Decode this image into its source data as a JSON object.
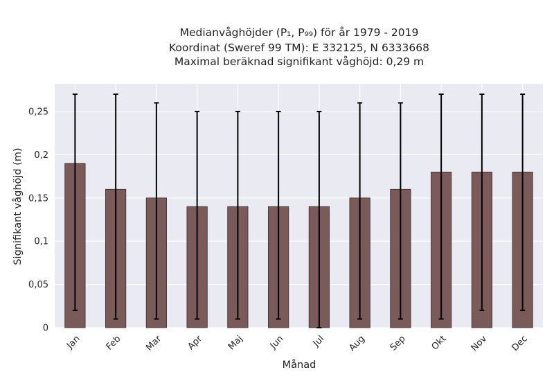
{
  "chart_data": {
    "type": "bar",
    "title_lines": [
      "Medianvåghöjder (P₁, P₉₉) för år 1979 - 2019",
      "Koordinat (Sweref 99 TM): E 332125, N 6333668",
      "Maximal beräknad signifikant våghöjd: 0,29 m"
    ],
    "xlabel": "Månad",
    "ylabel": "Signifikant våghöjd (m)",
    "categories": [
      "Jan",
      "Feb",
      "Mar",
      "Apr",
      "Maj",
      "Jun",
      "Jul",
      "Aug",
      "Sep",
      "Okt",
      "Nov",
      "Dec"
    ],
    "values": [
      0.19,
      0.16,
      0.15,
      0.14,
      0.14,
      0.14,
      0.14,
      0.15,
      0.16,
      0.18,
      0.18,
      0.18
    ],
    "p1": [
      0.02,
      0.01,
      0.01,
      0.01,
      0.01,
      0.01,
      0.0,
      0.01,
      0.01,
      0.01,
      0.02,
      0.02
    ],
    "p99": [
      0.27,
      0.27,
      0.26,
      0.25,
      0.25,
      0.25,
      0.25,
      0.26,
      0.26,
      0.27,
      0.27,
      0.27
    ],
    "yticks": [
      0,
      0.05,
      0.1,
      0.15,
      0.2,
      0.25
    ],
    "ytick_labels": [
      "0",
      "0,05",
      "0,1",
      "0,15",
      "0,2",
      "0,25"
    ],
    "ylim": [
      0,
      0.282
    ],
    "grid": true,
    "colors": {
      "bar": "#7b5a5a",
      "bar_edge": "#3a2a2a",
      "plot_bg": "#eaeaf2",
      "grid": "#ffffff",
      "errorbar": "#000000"
    }
  }
}
